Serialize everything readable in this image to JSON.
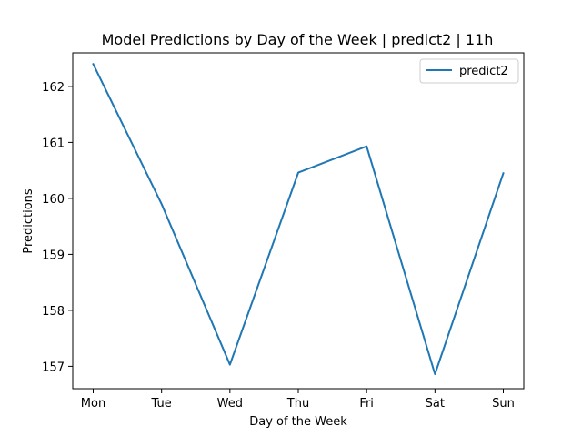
{
  "chart_data": {
    "type": "line",
    "title": "Model Predictions by Day of the Week | predict2 | 11h",
    "xlabel": "Day of the Week",
    "ylabel": "Predictions",
    "categories": [
      "Mon",
      "Tue",
      "Wed",
      "Thu",
      "Fri",
      "Sat",
      "Sun"
    ],
    "series": [
      {
        "name": "predict2",
        "color": "#1f77b4",
        "values": [
          162.4,
          159.9,
          157.03,
          160.46,
          160.93,
          156.86,
          160.45
        ]
      }
    ],
    "yticks": [
      157,
      158,
      159,
      160,
      161,
      162
    ],
    "ylim": [
      156.6,
      162.6
    ],
    "grid": false,
    "legend": "upper right"
  }
}
